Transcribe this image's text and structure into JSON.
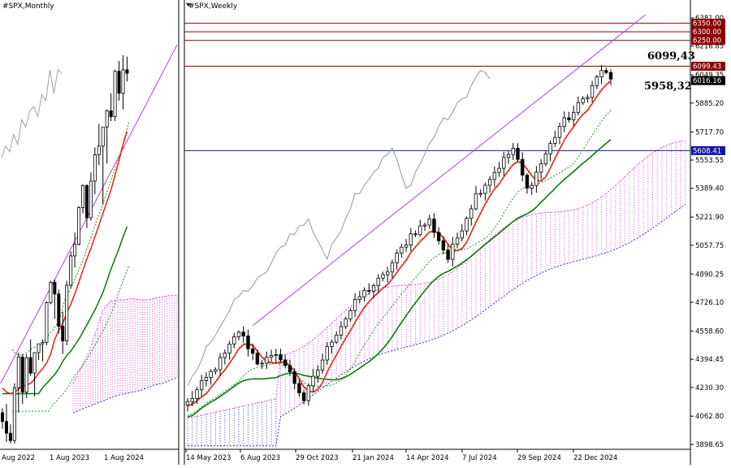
{
  "chart_data": [
    {
      "type": "candlestick",
      "title": "#SPX,Monthly",
      "x_ticks": [
        "Aug 2022",
        "1 Aug 2023",
        "1 Aug 2024"
      ],
      "ohlc": [
        [
          3700,
          3730,
          3590,
          3640
        ],
        [
          3640,
          3760,
          3500,
          3560
        ],
        [
          3560,
          3620,
          3490,
          3510
        ],
        [
          3510,
          3900,
          3490,
          3870
        ],
        [
          3870,
          4110,
          3700,
          4080
        ],
        [
          4080,
          4100,
          3760,
          3840
        ],
        [
          3840,
          4100,
          3800,
          4076
        ],
        [
          4076,
          4200,
          3950,
          3970
        ],
        [
          3970,
          4110,
          3810,
          4110
        ],
        [
          4110,
          4170,
          4060,
          4170
        ],
        [
          4170,
          4200,
          4050,
          4180
        ],
        [
          4180,
          4460,
          4160,
          4450
        ],
        [
          4450,
          4600,
          4440,
          4590
        ],
        [
          4590,
          4610,
          4340,
          4510
        ],
        [
          4510,
          4540,
          4240,
          4290
        ],
        [
          4290,
          4390,
          4100,
          4190
        ],
        [
          4190,
          4600,
          4160,
          4570
        ],
        [
          4570,
          4800,
          4550,
          4770
        ],
        [
          4770,
          4930,
          4690,
          4850
        ],
        [
          4850,
          5110,
          4840,
          5100
        ],
        [
          5100,
          5260,
          5060,
          5250
        ],
        [
          5250,
          5260,
          4960,
          5030
        ],
        [
          5030,
          5340,
          5010,
          5280
        ],
        [
          5280,
          5510,
          5190,
          5460
        ],
        [
          5460,
          5670,
          5390,
          5520
        ],
        [
          5520,
          5650,
          5120,
          5650
        ],
        [
          5650,
          5770,
          5400,
          5760
        ],
        [
          5760,
          5880,
          5690,
          5720
        ],
        [
          5720,
          6040,
          5690,
          6030
        ],
        [
          6030,
          6100,
          5830,
          5880
        ],
        [
          5880,
          6140,
          5770,
          6040
        ],
        [
          6040,
          6130,
          5960,
          6016
        ]
      ],
      "tenkan": [
        3870,
        3840,
        3830,
        3840,
        3860,
        3880,
        3890,
        3900,
        3930,
        3970,
        4000,
        4040,
        4100,
        4200,
        4260,
        4310,
        4380,
        4440,
        4510,
        4590,
        4670,
        4750,
        4820,
        4900,
        4980,
        5060,
        5140,
        5220,
        5320,
        5420,
        5530,
        5620
      ],
      "kijun": [
        3830,
        3830,
        3830,
        3830,
        3830,
        3830,
        3830,
        3830,
        3830,
        3830,
        3870,
        3900,
        3930,
        3960,
        4000,
        4050,
        4090,
        4120,
        4160,
        4200,
        4250,
        4300,
        4350,
        4400,
        4460,
        4520,
        4600,
        4680,
        4750,
        4820,
        4900,
        4970
      ],
      "chikou": [
        5440,
        5520,
        5480,
        5600,
        5530,
        5700,
        5650,
        5760,
        5790,
        5720,
        5870,
        5830,
        6040,
        5880,
        6040,
        6016
      ],
      "cloud_a": [
        3700,
        3720,
        3740,
        3760,
        3780,
        3800,
        3820,
        3830,
        3840,
        3850,
        3870,
        3890,
        3900,
        3920,
        3940
      ],
      "cloud_b": [
        3900,
        4000,
        4100,
        4240,
        4400,
        4460,
        4470,
        4470,
        4480,
        4470,
        4470,
        4480,
        4490,
        4500,
        4500
      ],
      "trendline": [
        [
          4,
          4100
        ],
        [
          31,
          5990
        ]
      ]
    },
    {
      "type": "candlestick",
      "title": "#SPX,Weekly",
      "x_ticks": [
        "14 May 2023",
        "6 Aug 2023",
        "29 Oct 2023",
        "21 Jan 2024",
        "14 Apr 2024",
        "7 Jul 2024",
        "29 Sep 2024",
        "22 Dec 2024"
      ],
      "y_ticks": [
        6381.0,
        6216.85,
        6049.35,
        5885.2,
        5717.7,
        5553.55,
        5389.4,
        5221.9,
        5057.75,
        4890.25,
        4726.1,
        4558.6,
        4394.45,
        4230.3,
        4062.8,
        3898.65
      ],
      "ylim": [
        3870,
        6400
      ],
      "price_tags": [
        {
          "label": "6350.00",
          "value": 6350,
          "color": "#8b0000"
        },
        {
          "label": "6300.00",
          "value": 6300,
          "color": "#8b0000"
        },
        {
          "label": "6250.00",
          "value": 6250,
          "color": "#8b0000"
        },
        {
          "label": "6099.43",
          "value": 6099.43,
          "color": "#8b0000"
        },
        {
          "label": "5608.41",
          "value": 5608.41,
          "color": "#1515a8"
        },
        {
          "label": "6016.16",
          "value": 6016.16,
          "color": "#000000"
        }
      ],
      "annotations": [
        {
          "label": "6099,43",
          "value": 6099.43
        },
        {
          "label": "5958,32",
          "value": 5958.32
        }
      ],
      "tenkan_kijun_note": "",
      "trendline": [
        [
          14,
          4590
        ],
        [
          100,
          6400
        ]
      ]
    }
  ]
}
